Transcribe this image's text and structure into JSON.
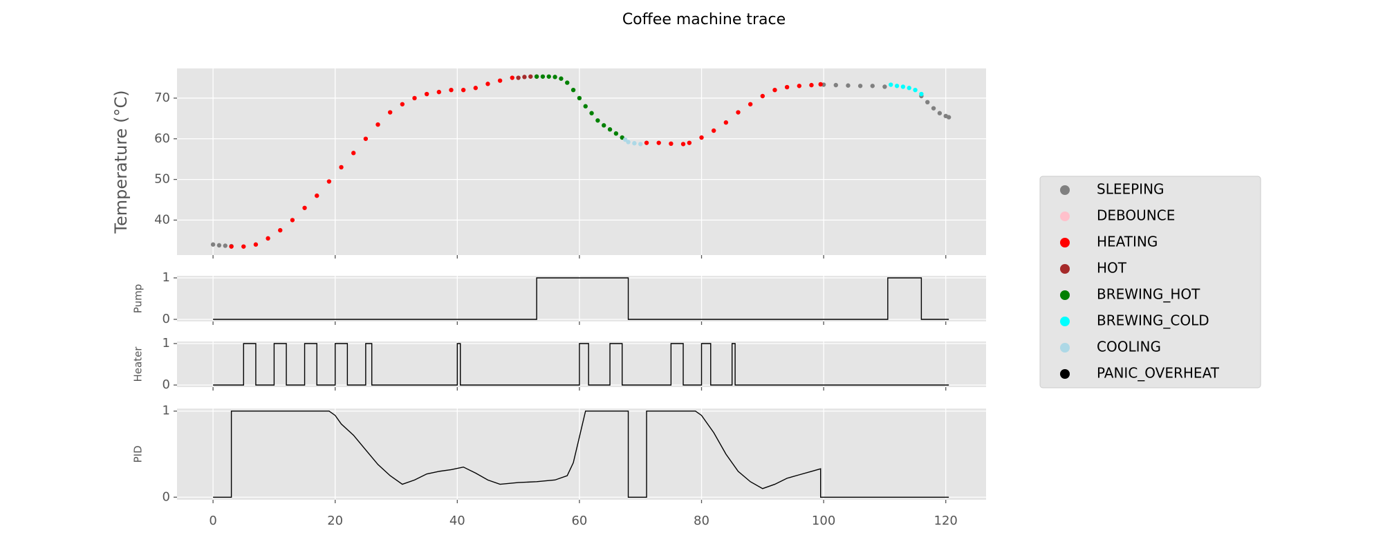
{
  "chart_data": [
    {
      "type": "scatter",
      "title": "Coffee machine trace",
      "ylabel": "Temperature (°C)",
      "xlim": [
        -5.9,
        126.6
      ],
      "xticks": [
        0,
        20,
        40,
        60,
        80,
        100,
        120
      ],
      "ylim": [
        31.4,
        77.3
      ],
      "yticks": [
        40,
        50,
        60,
        70
      ],
      "grid": true,
      "legend": "right",
      "series": [
        {
          "name": "SLEEPING",
          "color": "#808080",
          "x": [
            0,
            1,
            2,
            3,
            100,
            102,
            104,
            106,
            108,
            110,
            116,
            117,
            118,
            119,
            120,
            120.5
          ],
          "values": [
            34,
            33.8,
            33.7,
            33.6,
            73.3,
            73.2,
            73.1,
            73,
            73,
            72.8,
            70.5,
            69,
            67.5,
            66.3,
            65.6,
            65.3
          ]
        },
        {
          "name": "DEBOUNCE",
          "color": "#ffc0cb",
          "x": [],
          "values": []
        },
        {
          "name": "HEATING",
          "color": "#ff0000",
          "x": [
            3,
            5,
            7,
            9,
            11,
            13,
            15,
            17,
            19,
            21,
            23,
            25,
            27,
            29,
            31,
            33,
            35,
            37,
            39,
            41,
            43,
            45,
            47,
            49,
            71,
            73,
            75,
            77,
            78,
            80,
            82,
            84,
            86,
            88,
            90,
            92,
            94,
            96,
            98,
            99.5
          ],
          "values": [
            33.5,
            33.5,
            34,
            35.5,
            37.5,
            40,
            43,
            46,
            49.5,
            53,
            56.5,
            60,
            63.5,
            66.5,
            68.5,
            70,
            71,
            71.5,
            72,
            72,
            72.5,
            73.5,
            74.3,
            75,
            59,
            59,
            58.8,
            58.7,
            59,
            60.3,
            62,
            64,
            66.5,
            68.5,
            70.5,
            72,
            72.7,
            73,
            73.2,
            73.4
          ]
        },
        {
          "name": "HOT",
          "color": "#a52a2a",
          "x": [
            50,
            51,
            52,
            53
          ],
          "values": [
            75,
            75.2,
            75.3,
            75.3
          ]
        },
        {
          "name": "BREWING_HOT",
          "color": "#008000",
          "x": [
            53,
            54,
            55,
            56,
            57,
            58,
            59,
            60,
            61,
            62,
            63,
            64,
            65,
            66,
            67
          ],
          "values": [
            75.3,
            75.3,
            75.3,
            75.2,
            74.8,
            73.8,
            72,
            70,
            68,
            66.3,
            64.5,
            63.3,
            62.3,
            61.3,
            60.3
          ]
        },
        {
          "name": "BREWING_COLD",
          "color": "#00ffff",
          "x": [
            111,
            112,
            113,
            114,
            115,
            116
          ],
          "values": [
            73.3,
            73,
            72.8,
            72.5,
            72,
            71
          ]
        },
        {
          "name": "COOLING",
          "color": "#add8e6",
          "x": [
            67.5,
            68,
            69,
            70
          ],
          "values": [
            59.8,
            59.2,
            58.9,
            58.7
          ]
        },
        {
          "name": "PANIC_OVERHEAT",
          "color": "#000000",
          "x": [],
          "values": []
        }
      ]
    },
    {
      "type": "line",
      "ylabel": "Pump",
      "xlim": [
        -5.9,
        126.6
      ],
      "xticks": [
        0,
        20,
        40,
        60,
        80,
        100,
        120
      ],
      "ylim": [
        -0.05,
        1.05
      ],
      "yticks": [
        0,
        1
      ],
      "grid": true,
      "color": "#000000",
      "x": [
        0,
        53,
        53,
        68,
        68,
        110.5,
        110.5,
        116,
        116,
        120.5
      ],
      "values": [
        0,
        0,
        1,
        1,
        0,
        0,
        1,
        1,
        0,
        0
      ]
    },
    {
      "type": "line",
      "ylabel": "Heater",
      "xlim": [
        -5.9,
        126.6
      ],
      "xticks": [
        0,
        20,
        40,
        60,
        80,
        100,
        120
      ],
      "ylim": [
        -0.05,
        1.05
      ],
      "yticks": [
        0,
        1
      ],
      "grid": true,
      "color": "#000000",
      "x": [
        0,
        5,
        5,
        7,
        7,
        10,
        10,
        12,
        12,
        15,
        15,
        17,
        17,
        20,
        20,
        22,
        22,
        25,
        25,
        26,
        26,
        40,
        40,
        40.5,
        40.5,
        60,
        60,
        61.5,
        61.5,
        65,
        65,
        67,
        67,
        75,
        75,
        77,
        77,
        80,
        80,
        81.5,
        81.5,
        85,
        85,
        85.5,
        85.5,
        120.5
      ],
      "values": [
        0,
        0,
        1,
        1,
        0,
        0,
        1,
        1,
        0,
        0,
        1,
        1,
        0,
        0,
        1,
        1,
        0,
        0,
        1,
        1,
        0,
        0,
        1,
        1,
        0,
        0,
        1,
        1,
        0,
        0,
        1,
        1,
        0,
        0,
        1,
        1,
        0,
        0,
        1,
        1,
        0,
        0,
        1,
        1,
        0,
        0
      ]
    },
    {
      "type": "line",
      "ylabel": "PID",
      "xlim": [
        -5.9,
        126.6
      ],
      "xticks": [
        0,
        20,
        40,
        60,
        80,
        100,
        120
      ],
      "ylim": [
        -0.03,
        1.03
      ],
      "yticks": [
        0,
        1
      ],
      "grid": true,
      "color": "#000000",
      "x": [
        0,
        3,
        3,
        19,
        20,
        21,
        23,
        25,
        27,
        29,
        31,
        33,
        35,
        37,
        39,
        41,
        43,
        45,
        47,
        50,
        53,
        56,
        58,
        59,
        60,
        61,
        68,
        68,
        71,
        71,
        79,
        80,
        82,
        84,
        86,
        88,
        90,
        92,
        94,
        96,
        98,
        99.5,
        99.5,
        120.5
      ],
      "values": [
        0,
        0,
        1,
        1,
        0.95,
        0.85,
        0.72,
        0.55,
        0.38,
        0.25,
        0.15,
        0.2,
        0.27,
        0.3,
        0.32,
        0.35,
        0.28,
        0.2,
        0.15,
        0.17,
        0.18,
        0.2,
        0.25,
        0.4,
        0.7,
        1,
        1,
        0,
        0,
        1,
        1,
        0.95,
        0.75,
        0.5,
        0.3,
        0.18,
        0.1,
        0.15,
        0.22,
        0.26,
        0.3,
        0.33,
        0,
        0
      ]
    }
  ]
}
